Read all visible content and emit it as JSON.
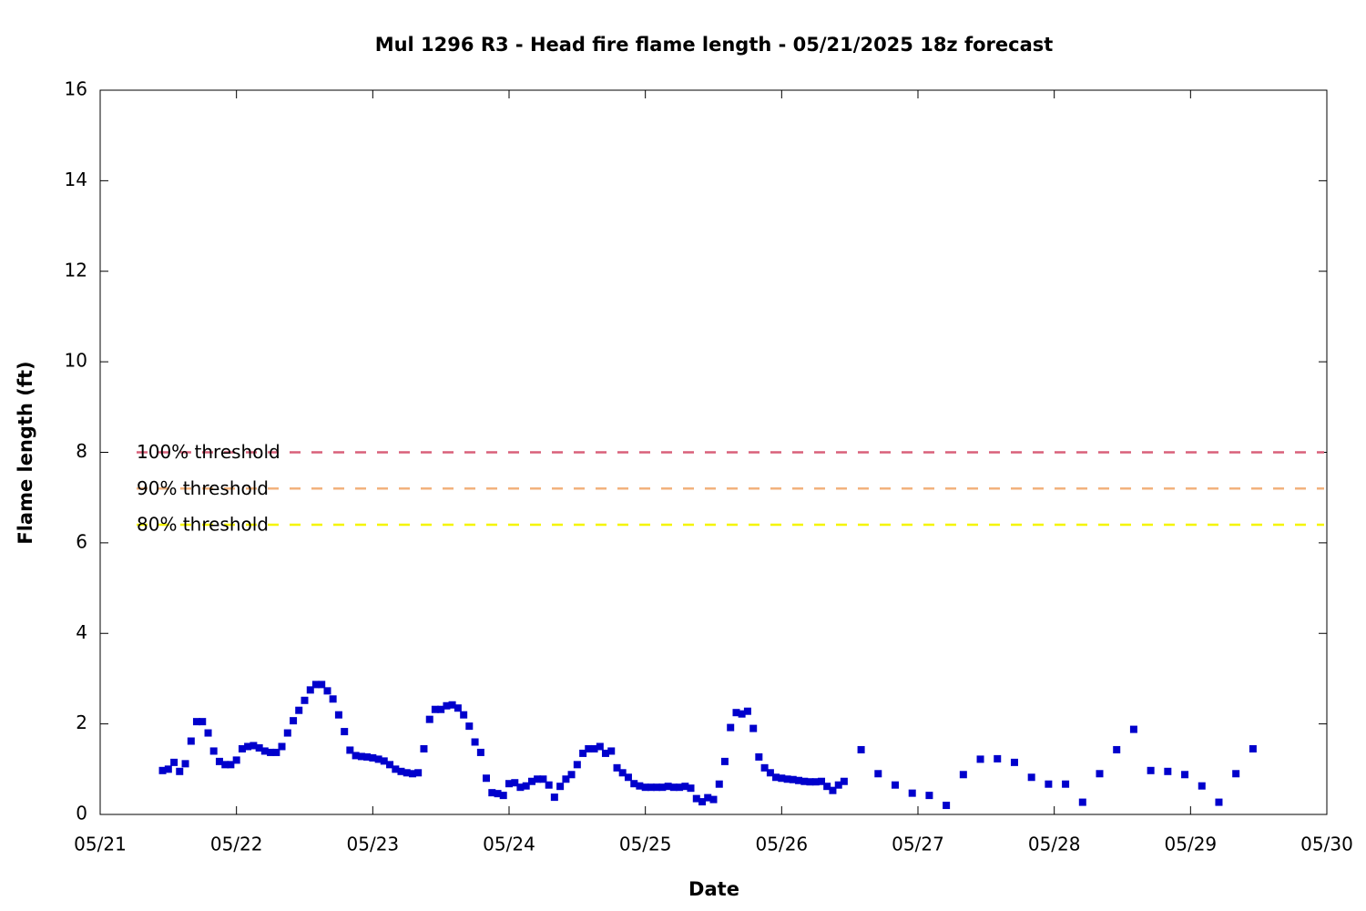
{
  "chart_data": {
    "type": "scatter",
    "title": "Mul 1296 R3 - Head fire flame length - 05/21/2025 18z forecast",
    "x_label": "Date",
    "y_label": "Flame length (ft)",
    "color": "#0000cc",
    "xlim": [
      21,
      30
    ],
    "xticks": [
      {
        "value": 21,
        "label": "05/21"
      },
      {
        "value": 22,
        "label": "05/22"
      },
      {
        "value": 23,
        "label": "05/23"
      },
      {
        "value": 24,
        "label": "05/24"
      },
      {
        "value": 25,
        "label": "05/25"
      },
      {
        "value": 26,
        "label": "05/26"
      },
      {
        "value": 27,
        "label": "05/27"
      },
      {
        "value": 28,
        "label": "05/28"
      },
      {
        "value": 29,
        "label": "05/29"
      },
      {
        "value": 30,
        "label": "05/30"
      }
    ],
    "ylim": [
      0,
      16
    ],
    "yticks": [
      0,
      2,
      4,
      6,
      8,
      10,
      12,
      14,
      16
    ],
    "grid": false,
    "thresholds": [
      {
        "name": "100% threshold",
        "value": 8,
        "color": "#d9607a"
      },
      {
        "name": "90% threshold",
        "value": 7.2,
        "color": "#f2b27d"
      },
      {
        "name": "80% threshold",
        "value": 6.4,
        "color": "#f5f500"
      }
    ],
    "x": [
      21.458,
      21.5,
      21.542,
      21.583,
      21.625,
      21.667,
      21.708,
      21.75,
      21.792,
      21.833,
      21.875,
      21.917,
      21.958,
      22.0,
      22.042,
      22.083,
      22.125,
      22.167,
      22.208,
      22.25,
      22.292,
      22.333,
      22.375,
      22.417,
      22.458,
      22.5,
      22.542,
      22.583,
      22.625,
      22.667,
      22.708,
      22.75,
      22.792,
      22.833,
      22.875,
      22.917,
      22.958,
      23.0,
      23.042,
      23.083,
      23.125,
      23.167,
      23.208,
      23.25,
      23.292,
      23.333,
      23.375,
      23.417,
      23.458,
      23.5,
      23.542,
      23.583,
      23.625,
      23.667,
      23.708,
      23.75,
      23.792,
      23.833,
      23.875,
      23.917,
      23.958,
      24.0,
      24.042,
      24.083,
      24.125,
      24.167,
      24.208,
      24.25,
      24.292,
      24.333,
      24.375,
      24.417,
      24.458,
      24.5,
      24.542,
      24.583,
      24.625,
      24.667,
      24.708,
      24.75,
      24.792,
      24.833,
      24.875,
      24.917,
      24.958,
      25.0,
      25.042,
      25.083,
      25.125,
      25.167,
      25.208,
      25.25,
      25.292,
      25.333,
      25.375,
      25.417,
      25.458,
      25.5,
      25.542,
      25.583,
      25.625,
      25.667,
      25.708,
      25.75,
      25.792,
      25.833,
      25.875,
      25.917,
      25.958,
      26.0,
      26.042,
      26.083,
      26.125,
      26.167,
      26.208,
      26.25,
      26.292,
      26.333,
      26.375,
      26.417,
      26.458,
      26.583,
      26.708,
      26.833,
      26.958,
      27.083,
      27.208,
      27.333,
      27.458,
      27.583,
      27.708,
      27.833,
      27.958,
      28.083,
      28.208,
      28.333,
      28.458,
      28.583,
      28.708,
      28.833,
      28.958,
      29.083,
      29.208,
      29.333,
      29.458
    ],
    "values": [
      0.97,
      1.0,
      1.15,
      0.95,
      1.12,
      1.62,
      2.05,
      2.05,
      1.8,
      1.4,
      1.17,
      1.1,
      1.1,
      1.2,
      1.45,
      1.5,
      1.52,
      1.47,
      1.4,
      1.37,
      1.37,
      1.5,
      1.8,
      2.07,
      2.3,
      2.52,
      2.75,
      2.87,
      2.87,
      2.73,
      2.55,
      2.2,
      1.83,
      1.42,
      1.3,
      1.28,
      1.27,
      1.25,
      1.22,
      1.18,
      1.1,
      1.0,
      0.95,
      0.92,
      0.9,
      0.92,
      1.45,
      2.1,
      2.32,
      2.32,
      2.4,
      2.42,
      2.35,
      2.2,
      1.95,
      1.6,
      1.37,
      0.8,
      0.48,
      0.46,
      0.42,
      0.68,
      0.7,
      0.6,
      0.63,
      0.73,
      0.78,
      0.78,
      0.65,
      0.38,
      0.62,
      0.78,
      0.88,
      1.1,
      1.35,
      1.45,
      1.45,
      1.5,
      1.35,
      1.4,
      1.03,
      0.92,
      0.82,
      0.68,
      0.63,
      0.6,
      0.6,
      0.6,
      0.6,
      0.62,
      0.6,
      0.6,
      0.62,
      0.58,
      0.35,
      0.28,
      0.37,
      0.33,
      0.67,
      1.17,
      1.92,
      2.25,
      2.22,
      2.28,
      1.9,
      1.27,
      1.03,
      0.92,
      0.82,
      0.8,
      0.78,
      0.77,
      0.75,
      0.73,
      0.72,
      0.72,
      0.73,
      0.62,
      0.53,
      0.65,
      0.73,
      1.43,
      0.9,
      0.65,
      0.47,
      0.42,
      0.2,
      0.88,
      1.22,
      1.23,
      1.15,
      0.82,
      0.67,
      0.67,
      0.27,
      0.9,
      1.43,
      1.88,
      0.97,
      0.95,
      0.88,
      0.63,
      0.27,
      0.9,
      1.45
    ]
  }
}
